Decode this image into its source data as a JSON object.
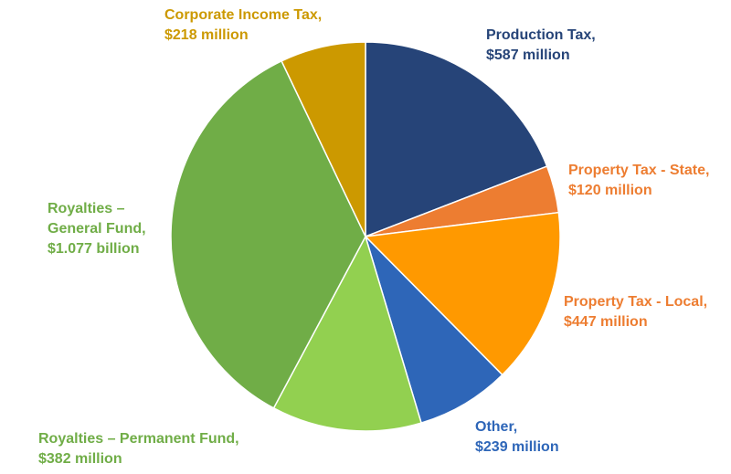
{
  "chart_data": {
    "type": "pie",
    "unit": "$ million",
    "slices": [
      {
        "name": "Production Tax",
        "value": 587,
        "color": "#264478",
        "label": [
          "Production Tax,",
          "$587 million"
        ]
      },
      {
        "name": "Property Tax - State",
        "value": 120,
        "color": "#ED7D31",
        "label": [
          "Property Tax - State,",
          "$120 million"
        ]
      },
      {
        "name": "Property Tax - Local",
        "value": 447,
        "color": "#FF9900",
        "label": [
          "Property Tax - Local,",
          "$447 million"
        ]
      },
      {
        "name": "Other",
        "value": 239,
        "color": "#2E66B8",
        "label": [
          "Other,",
          "$239 million"
        ]
      },
      {
        "name": "Royalties – Permanent Fund",
        "value": 382,
        "color": "#92D050",
        "label": [
          "Royalties – Permanent Fund,",
          "$382 million"
        ]
      },
      {
        "name": "Royalties – General Fund",
        "value": 1077,
        "color": "#70AD47",
        "label": [
          "Royalties –",
          "General Fund,",
          "$1.077 billion"
        ]
      },
      {
        "name": "Corporate Income Tax",
        "value": 218,
        "color": "#CC9900",
        "label": [
          "Corporate Income Tax,",
          "$218 million"
        ]
      }
    ],
    "label_colors": {
      "Production Tax": "#264478",
      "Property Tax - State": "#ED7D31",
      "Property Tax - Local": "#ED7D31",
      "Other": "#2E66B8",
      "Royalties – Permanent Fund": "#70AD47",
      "Royalties – General Fund": "#70AD47",
      "Corporate Income Tax": "#CC9900"
    },
    "start_angle_deg": 0,
    "direction": "clockwise"
  }
}
